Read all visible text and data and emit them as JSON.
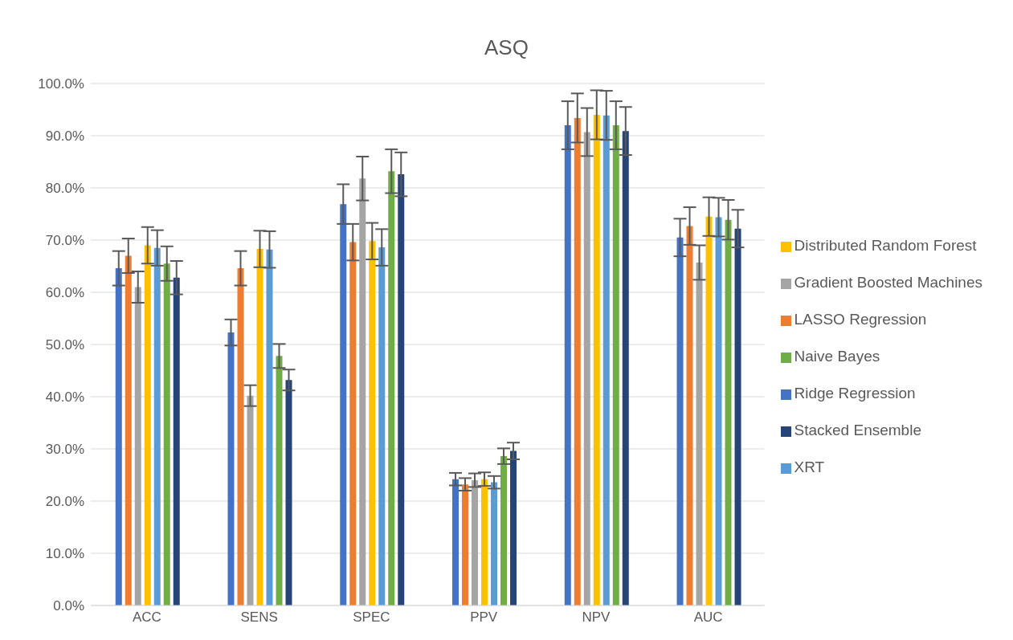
{
  "chart_data": {
    "type": "bar",
    "title": "ASQ",
    "categories": [
      "ACC",
      "SENS",
      "SPEC",
      "PPV",
      "NPV",
      "AUC"
    ],
    "series": [
      {
        "name": "Ridge Regression",
        "color": "#4472c4",
        "values": [
          64.6,
          52.3,
          76.9,
          24.2,
          92.0,
          70.5
        ],
        "errors": [
          3.3,
          2.5,
          3.8,
          1.2,
          4.6,
          3.6
        ]
      },
      {
        "name": "LASSO Regression",
        "color": "#ed7d31",
        "values": [
          67.0,
          64.6,
          69.6,
          23.2,
          93.4,
          72.7
        ],
        "errors": [
          3.3,
          3.3,
          3.5,
          1.2,
          4.7,
          3.6
        ]
      },
      {
        "name": "Gradient Boosted Machines",
        "color": "#a5a5a5",
        "values": [
          61.0,
          40.2,
          81.8,
          24.0,
          90.7,
          65.7
        ],
        "errors": [
          3.0,
          2.0,
          4.2,
          1.3,
          4.6,
          3.3
        ]
      },
      {
        "name": "Distributed Random Forest",
        "color": "#ffc000",
        "values": [
          69.0,
          68.3,
          69.8,
          24.2,
          94.0,
          74.5
        ],
        "errors": [
          3.5,
          3.5,
          3.5,
          1.3,
          4.7,
          3.7
        ]
      },
      {
        "name": "XRT",
        "color": "#5b9bd5",
        "values": [
          68.5,
          68.2,
          68.6,
          23.6,
          93.9,
          74.4
        ],
        "errors": [
          3.4,
          3.5,
          3.5,
          1.2,
          4.7,
          3.7
        ]
      },
      {
        "name": "Naive Bayes",
        "color": "#70ad47",
        "values": [
          65.5,
          47.8,
          83.2,
          28.6,
          92.0,
          73.9
        ],
        "errors": [
          3.3,
          2.3,
          4.2,
          1.5,
          4.6,
          3.8
        ]
      },
      {
        "name": "Stacked Ensemble",
        "color": "#264478",
        "values": [
          62.8,
          43.2,
          82.6,
          29.6,
          90.9,
          72.2
        ],
        "errors": [
          3.2,
          2.0,
          4.2,
          1.6,
          4.6,
          3.6
        ]
      }
    ],
    "ylim": [
      0,
      100
    ],
    "yticks": [
      {
        "value": 0,
        "label": "0.0%"
      },
      {
        "value": 10,
        "label": "10.0%"
      },
      {
        "value": 20,
        "label": "20.0%"
      },
      {
        "value": 30,
        "label": "30.0%"
      },
      {
        "value": 40,
        "label": "40.0%"
      },
      {
        "value": 50,
        "label": "50.0%"
      },
      {
        "value": 60,
        "label": "60.0%"
      },
      {
        "value": 70,
        "label": "70.0%"
      },
      {
        "value": 80,
        "label": "80.0%"
      },
      {
        "value": 90,
        "label": "90.0%"
      },
      {
        "value": 100,
        "label": "100.0%"
      }
    ],
    "grid": "y",
    "legend": "right"
  }
}
